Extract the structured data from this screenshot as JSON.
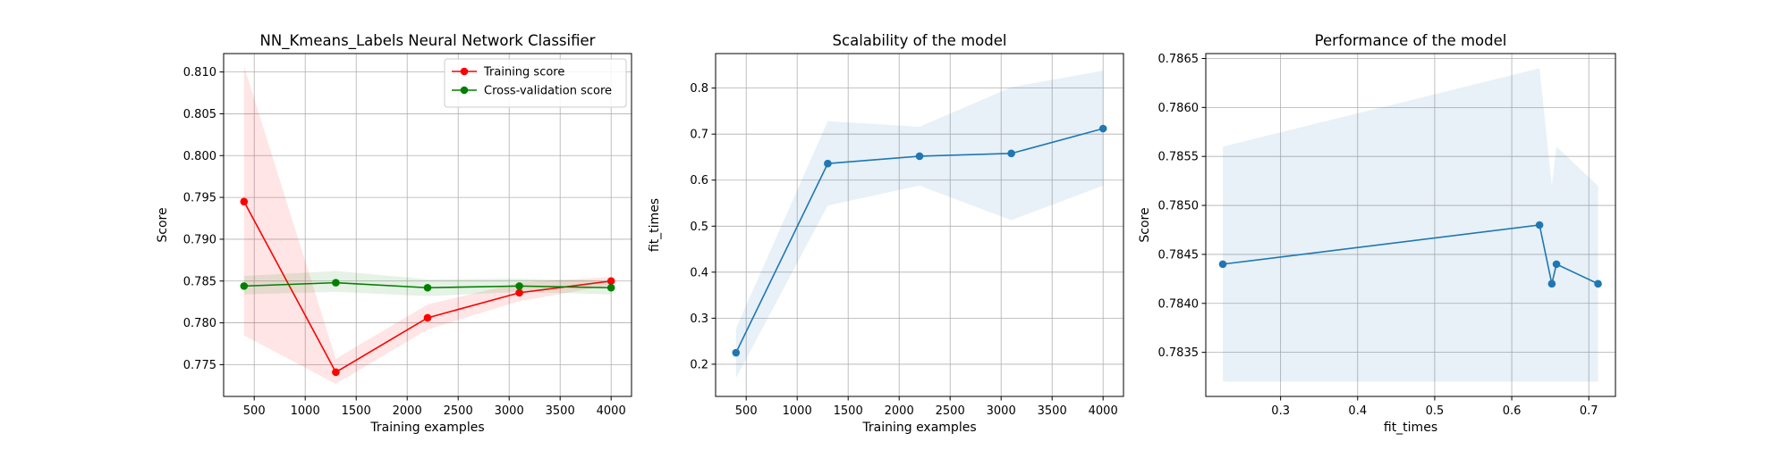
{
  "chart_data": [
    {
      "type": "line",
      "title": "NN_Kmeans_Labels Neural Network Classifier",
      "xlabel": "Training examples",
      "ylabel": "Score",
      "xlim": [
        200,
        4200
      ],
      "ylim": [
        0.7712,
        0.8122
      ],
      "xticks": [
        500,
        1000,
        1500,
        2000,
        2500,
        3000,
        3500,
        4000
      ],
      "yticks": [
        0.775,
        0.78,
        0.785,
        0.79,
        0.795,
        0.8,
        0.805,
        0.81
      ],
      "ytick_decimals": 3,
      "grid": true,
      "legend_position": "top-right",
      "x": [
        400,
        1300,
        2200,
        3100,
        4000
      ],
      "series": [
        {
          "name": "Training score",
          "color": "#ff0000",
          "values": [
            0.7945,
            0.7741,
            0.7806,
            0.7836,
            0.785
          ],
          "band_lower": [
            0.7785,
            0.7727,
            0.7792,
            0.7826,
            0.7845
          ],
          "band_upper": [
            0.8107,
            0.7757,
            0.7822,
            0.7848,
            0.7855
          ],
          "band_color": "#ff0000"
        },
        {
          "name": "Cross-validation score",
          "color": "#008000",
          "values": [
            0.7844,
            0.7848,
            0.7842,
            0.7844,
            0.7842
          ],
          "band_lower": [
            0.7834,
            0.7837,
            0.7832,
            0.7837,
            0.7834
          ],
          "band_upper": [
            0.7856,
            0.7862,
            0.7852,
            0.7853,
            0.785
          ],
          "band_color": "#008000"
        }
      ]
    },
    {
      "type": "line",
      "title": "Scalability of the model",
      "xlabel": "Training examples",
      "ylabel": "fit_times",
      "xlim": [
        200,
        4200
      ],
      "ylim": [
        0.13,
        0.875
      ],
      "xticks": [
        500,
        1000,
        1500,
        2000,
        2500,
        3000,
        3500,
        4000
      ],
      "yticks": [
        0.2,
        0.3,
        0.4,
        0.5,
        0.6,
        0.7,
        0.8
      ],
      "ytick_decimals": 1,
      "grid": true,
      "x": [
        400,
        1300,
        2200,
        3100,
        4000
      ],
      "series": [
        {
          "name": "",
          "color": "#1f77b4",
          "values": [
            0.225,
            0.636,
            0.652,
            0.658,
            0.712
          ],
          "band_lower": [
            0.17,
            0.545,
            0.588,
            0.513,
            0.588
          ],
          "band_upper": [
            0.278,
            0.728,
            0.716,
            0.802,
            0.838
          ],
          "band_color": "#1f77b4"
        }
      ]
    },
    {
      "type": "line",
      "title": "Performance of the model",
      "xlabel": "fit_times",
      "ylabel": "Score",
      "xlim": [
        0.2029,
        0.7346
      ],
      "ylim": [
        0.78305,
        0.78655
      ],
      "xticks": [
        0.3,
        0.4,
        0.5,
        0.6,
        0.7
      ],
      "yticks": [
        0.7835,
        0.784,
        0.7845,
        0.785,
        0.7855,
        0.786,
        0.7865
      ],
      "ytick_decimals": 4,
      "grid": true,
      "series": [
        {
          "name": "",
          "color": "#1f77b4",
          "x": [
            0.225,
            0.636,
            0.652,
            0.658,
            0.712
          ],
          "values": [
            0.7844,
            0.7848,
            0.7842,
            0.7844,
            0.7842
          ],
          "band_lower": [
            0.7832,
            0.7832,
            0.7832,
            0.7832,
            0.7832
          ],
          "band_upper": [
            0.7856,
            0.7864,
            0.7852,
            0.7856,
            0.7852
          ],
          "band_color": "#1f77b4"
        }
      ]
    }
  ]
}
